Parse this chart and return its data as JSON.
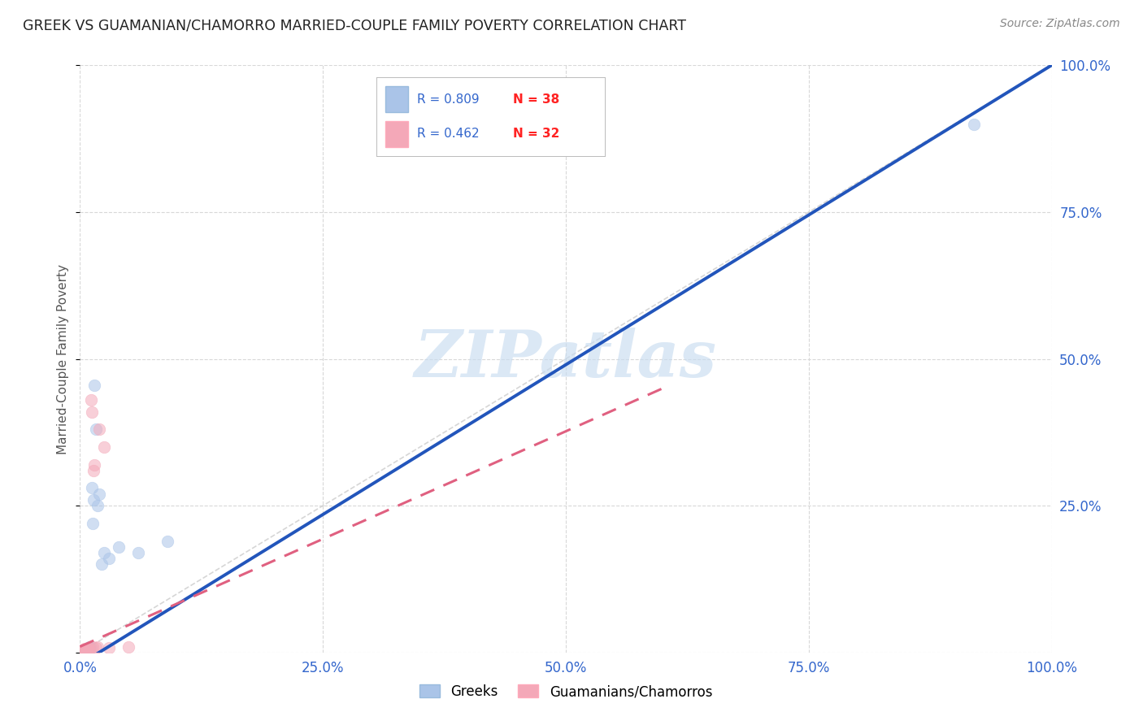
{
  "title": "GREEK VS GUAMANIAN/CHAMORRO MARRIED-COUPLE FAMILY POVERTY CORRELATION CHART",
  "source": "Source: ZipAtlas.com",
  "ylabel": "Married-Couple Family Poverty",
  "xlim": [
    0,
    1.0
  ],
  "ylim": [
    0,
    1.0
  ],
  "xticks": [
    0.0,
    0.25,
    0.5,
    0.75,
    1.0
  ],
  "yticks": [
    0.0,
    0.25,
    0.5,
    0.75,
    1.0
  ],
  "xticklabels": [
    "0.0%",
    "25.0%",
    "50.0%",
    "75.0%",
    "100.0%"
  ],
  "right_yticklabels": [
    "",
    "25.0%",
    "50.0%",
    "75.0%",
    "100.0%"
  ],
  "background_color": "#ffffff",
  "grid_color": "#d8d8d8",
  "watermark": "ZIPatlas",
  "blue_color": "#aac4e8",
  "pink_color": "#f4a8b8",
  "line_blue_color": "#2255bb",
  "line_pink_color": "#e06080",
  "diagonal_color": "#cccccc",
  "label_color": "#3366cc",
  "title_color": "#222222",
  "source_color": "#888888",
  "legend_r1": "R = 0.809",
  "legend_n1": "N = 38",
  "legend_r2": "R = 0.462",
  "legend_n2": "N = 32",
  "legend_num_color": "#ff2222",
  "legend_r_color": "#333333",
  "greek_x": [
    0.001,
    0.001,
    0.002,
    0.002,
    0.002,
    0.003,
    0.003,
    0.003,
    0.004,
    0.004,
    0.005,
    0.005,
    0.005,
    0.006,
    0.006,
    0.007,
    0.007,
    0.008,
    0.008,
    0.009,
    0.009,
    0.01,
    0.01,
    0.011,
    0.012,
    0.013,
    0.014,
    0.015,
    0.016,
    0.018,
    0.02,
    0.022,
    0.025,
    0.03,
    0.04,
    0.06,
    0.09,
    0.92
  ],
  "greek_y": [
    0.001,
    0.002,
    0.001,
    0.003,
    0.002,
    0.002,
    0.003,
    0.001,
    0.003,
    0.004,
    0.002,
    0.004,
    0.003,
    0.003,
    0.005,
    0.004,
    0.006,
    0.005,
    0.007,
    0.005,
    0.008,
    0.006,
    0.009,
    0.008,
    0.28,
    0.22,
    0.26,
    0.455,
    0.38,
    0.25,
    0.27,
    0.15,
    0.17,
    0.16,
    0.18,
    0.17,
    0.19,
    0.9
  ],
  "guam_x": [
    0.001,
    0.001,
    0.001,
    0.002,
    0.002,
    0.002,
    0.003,
    0.003,
    0.003,
    0.004,
    0.004,
    0.005,
    0.005,
    0.006,
    0.006,
    0.007,
    0.007,
    0.008,
    0.008,
    0.009,
    0.01,
    0.011,
    0.012,
    0.013,
    0.014,
    0.015,
    0.016,
    0.018,
    0.02,
    0.025,
    0.03,
    0.05
  ],
  "guam_y": [
    0.001,
    0.002,
    0.003,
    0.001,
    0.003,
    0.002,
    0.002,
    0.004,
    0.003,
    0.003,
    0.005,
    0.004,
    0.006,
    0.003,
    0.005,
    0.004,
    0.007,
    0.005,
    0.006,
    0.007,
    0.007,
    0.43,
    0.41,
    0.009,
    0.31,
    0.32,
    0.008,
    0.009,
    0.38,
    0.35,
    0.008,
    0.01
  ],
  "blue_line_x0": 0.0,
  "blue_line_y0": -0.02,
  "blue_line_x1": 1.0,
  "blue_line_y1": 1.0,
  "pink_line_x0": 0.0,
  "pink_line_y0": 0.01,
  "pink_line_x1": 0.6,
  "pink_line_y1": 0.45,
  "scatter_size": 110,
  "scatter_alpha": 0.55,
  "scatter_lw": 1.2
}
